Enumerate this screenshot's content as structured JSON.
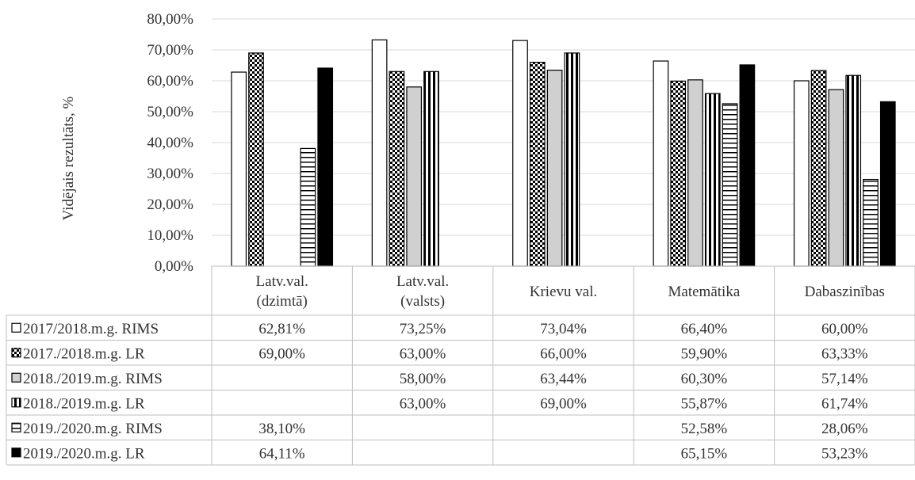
{
  "chart_data": {
    "type": "bar",
    "ylabel": "Vidējais rezultāts, %",
    "ylim": [
      0,
      80
    ],
    "y_ticks": [
      "0,00%",
      "10,00%",
      "20,00%",
      "30,00%",
      "40,00%",
      "50,00%",
      "60,00%",
      "70,00%",
      "80,00%"
    ],
    "grid": true,
    "legend_placement": "data-table-left",
    "categories": [
      {
        "line1": "Latv.val.",
        "line2": "(dzimtā)"
      },
      {
        "line1": "Latv.val.",
        "line2": "(valsts)"
      },
      {
        "line1": "Krievu val.",
        "line2": ""
      },
      {
        "line1": "Matemātika",
        "line2": ""
      },
      {
        "line1": "Dabaszinības",
        "line2": ""
      }
    ],
    "series": [
      {
        "name": "2017/2018.m.g. RIMS",
        "pattern": "blank",
        "values": [
          62.81,
          73.25,
          73.04,
          66.4,
          60.0
        ],
        "labels": [
          "62,81%",
          "73,25%",
          "73,04%",
          "66,40%",
          "60,00%"
        ]
      },
      {
        "name": "2017./2018.m.g. LR",
        "pattern": "checker",
        "values": [
          69.0,
          63.0,
          66.0,
          59.9,
          63.33
        ],
        "labels": [
          "69,00%",
          "63,00%",
          "66,00%",
          "59,90%",
          "63,33%"
        ]
      },
      {
        "name": "2018./2019.m.g. RIMS",
        "pattern": "gray",
        "values": [
          null,
          58.0,
          63.44,
          60.3,
          57.14
        ],
        "labels": [
          "",
          "58,00%",
          "63,44%",
          "60,30%",
          "57,14%"
        ]
      },
      {
        "name": "2018./2019.m.g. LR",
        "pattern": "vstripes",
        "values": [
          null,
          63.0,
          69.0,
          55.87,
          61.74
        ],
        "labels": [
          "",
          "63,00%",
          "69,00%",
          "55,87%",
          "61,74%"
        ]
      },
      {
        "name": "2019./2020.m.g. RIMS",
        "pattern": "hstripes",
        "values": [
          38.1,
          null,
          null,
          52.58,
          28.06
        ],
        "labels": [
          "38,10%",
          "",
          "",
          "52,58%",
          "28,06%"
        ]
      },
      {
        "name": "2019./2020.m.g. LR",
        "pattern": "solid",
        "values": [
          64.11,
          null,
          null,
          65.15,
          53.23
        ],
        "labels": [
          "64,11%",
          "",
          "",
          "65,15%",
          "53,23%"
        ]
      }
    ],
    "colors": {
      "stroke": "#000000",
      "gray_fill": "#d0d0d0",
      "solid_fill": "#000000",
      "grid": "#d9d9d9",
      "table_border": "#bfbfbf"
    }
  }
}
